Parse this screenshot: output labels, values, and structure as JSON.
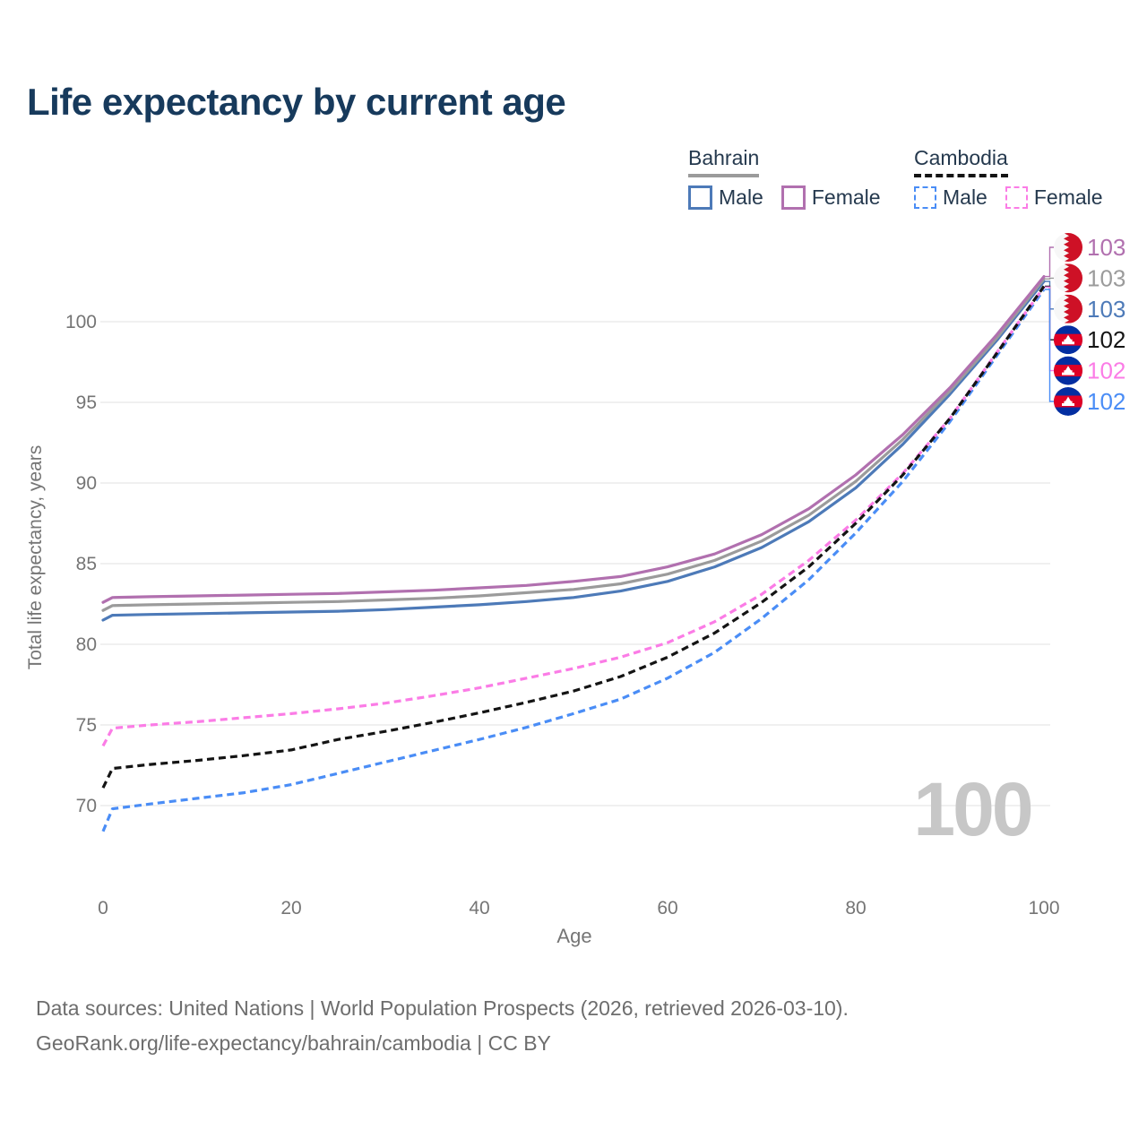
{
  "title": "Life expectancy by current age",
  "legend": {
    "bahrain": {
      "label": "Bahrain",
      "male_label": "Male",
      "female_label": "Female"
    },
    "cambodia": {
      "label": "Cambodia",
      "male_label": "Male",
      "female_label": "Female"
    }
  },
  "colors": {
    "title": "#173a5c",
    "axis_text": "#757575",
    "gridline": "#e8e8e8",
    "watermark": "#c7c7c7",
    "footer_text": "#6d6d6d",
    "bahrain_flag_red": "#ce1126",
    "bahrain_flag_white": "#f7f7f7",
    "cambodia_flag_blue": "#032ea1",
    "cambodia_flag_red": "#e00025"
  },
  "chart_data": {
    "type": "line",
    "title": "Life expectancy by current age",
    "xlabel": "Age",
    "ylabel": "Total life expectancy, years",
    "x_ticks": [
      0,
      20,
      40,
      60,
      80,
      100
    ],
    "y_ticks": [
      70,
      75,
      80,
      85,
      90,
      95,
      100
    ],
    "xlim": [
      0,
      100
    ],
    "ylim": [
      70,
      100
    ],
    "grid": true,
    "legend_position": "top-right",
    "ages": [
      0,
      1,
      5,
      10,
      15,
      20,
      25,
      30,
      35,
      40,
      45,
      50,
      55,
      60,
      65,
      70,
      75,
      80,
      85,
      90,
      95,
      100
    ],
    "series": [
      {
        "id": "bahrain_female",
        "name": "Bahrain Female",
        "color": "#b170af",
        "dash": "solid",
        "end_label": "103",
        "flag": "bahrain",
        "values": [
          82.6,
          82.9,
          82.95,
          83.0,
          83.05,
          83.1,
          83.15,
          83.25,
          83.35,
          83.5,
          83.65,
          83.9,
          84.2,
          84.8,
          85.6,
          86.8,
          88.4,
          90.5,
          93.0,
          95.9,
          99.2,
          102.8
        ]
      },
      {
        "id": "bahrain_total",
        "name": "Bahrain",
        "color": "#9b9b9b",
        "dash": "solid",
        "end_label": "103",
        "flag": "bahrain",
        "values": [
          82.1,
          82.4,
          82.45,
          82.5,
          82.55,
          82.6,
          82.65,
          82.75,
          82.85,
          83.0,
          83.2,
          83.4,
          83.75,
          84.35,
          85.2,
          86.4,
          88.0,
          90.1,
          92.7,
          95.7,
          99.0,
          102.65
        ]
      },
      {
        "id": "bahrain_male",
        "name": "Bahrain Male",
        "color": "#4d7ab8",
        "dash": "solid",
        "end_label": "103",
        "flag": "bahrain",
        "values": [
          81.5,
          81.8,
          81.85,
          81.9,
          81.95,
          82.0,
          82.05,
          82.15,
          82.3,
          82.45,
          82.65,
          82.9,
          83.3,
          83.9,
          84.8,
          86.0,
          87.6,
          89.7,
          92.4,
          95.5,
          98.85,
          102.5
        ]
      },
      {
        "id": "cambodia_total",
        "name": "Cambodia",
        "color": "#141414",
        "dash": "dashed",
        "end_label": "102",
        "flag": "cambodia",
        "values": [
          71.1,
          72.3,
          72.55,
          72.8,
          73.1,
          73.45,
          74.1,
          74.6,
          75.15,
          75.75,
          76.4,
          77.1,
          78.0,
          79.2,
          80.7,
          82.6,
          84.8,
          87.5,
          90.5,
          94.0,
          98.05,
          102.2
        ]
      },
      {
        "id": "cambodia_female",
        "name": "Cambodia Female",
        "color": "#fb7ce6",
        "dash": "dashed",
        "end_label": "102",
        "flag": "cambodia",
        "values": [
          73.7,
          74.8,
          75.0,
          75.2,
          75.45,
          75.7,
          76.0,
          76.35,
          76.8,
          77.3,
          77.9,
          78.5,
          79.2,
          80.1,
          81.4,
          83.1,
          85.2,
          87.7,
          90.6,
          94.0,
          98.1,
          102.15
        ]
      },
      {
        "id": "cambodia_male",
        "name": "Cambodia Male",
        "color": "#4a8df6",
        "dash": "dashed",
        "end_label": "102",
        "flag": "cambodia",
        "values": [
          68.4,
          69.8,
          70.1,
          70.45,
          70.8,
          71.3,
          72.0,
          72.7,
          73.4,
          74.1,
          74.85,
          75.7,
          76.6,
          77.9,
          79.5,
          81.6,
          84.0,
          86.9,
          90.1,
          93.8,
          97.9,
          102.0
        ]
      }
    ]
  },
  "age_indicator": "100",
  "footer": {
    "line1": "Data sources: United Nations | World Population Prospects (2026, retrieved 2026-03-10).",
    "line2": "GeoRank.org/life-expectancy/bahrain/cambodia | CC BY"
  }
}
